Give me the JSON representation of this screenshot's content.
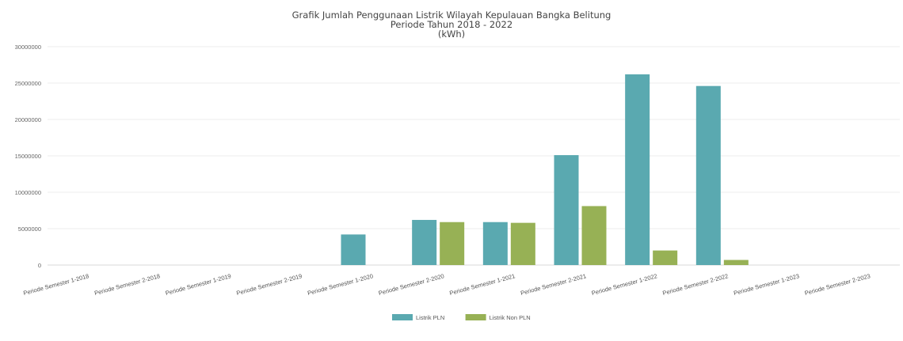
{
  "chart_data": {
    "type": "bar",
    "title_lines": [
      "Grafik Jumlah Penggunaan Listrik Wilayah Kepulauan Bangka Belitung",
      "Periode Tahun 2018 - 2022",
      "(kWh)"
    ],
    "xlabel": "",
    "ylabel": "",
    "ylim": [
      0,
      30000000
    ],
    "yticks": [
      0,
      5000000,
      10000000,
      15000000,
      20000000,
      25000000,
      30000000
    ],
    "ytick_labels": [
      "0",
      "5000000",
      "10000000",
      "15000000",
      "20000000",
      "25000000",
      "30000000"
    ],
    "grid": true,
    "legend_position": "bottom",
    "categories": [
      "Periode Semester 1-2018",
      "Periode Semester 2-2018",
      "Periode Semester 1-2019",
      "Periode Semester 2-2019",
      "Periode Semester 1-2020",
      "Periode Semester 2-2020",
      "Periode Semester 1-2021",
      "Periode Semester 2-2021",
      "Periode Semester 1-2022",
      "Periode Semester 2-2022",
      "Periode Semester 1-2023",
      "Periode Semester 2-2023"
    ],
    "series": [
      {
        "name": "Listrik PLN",
        "color": "#5aa9b0",
        "values": [
          0,
          0,
          0,
          0,
          4200000,
          6200000,
          5900000,
          15100000,
          26200000,
          24600000,
          0,
          0
        ]
      },
      {
        "name": "Listrik Non PLN",
        "color": "#97b155",
        "values": [
          0,
          0,
          0,
          0,
          0,
          5900000,
          5800000,
          8100000,
          2000000,
          700000,
          0,
          0
        ]
      }
    ]
  }
}
